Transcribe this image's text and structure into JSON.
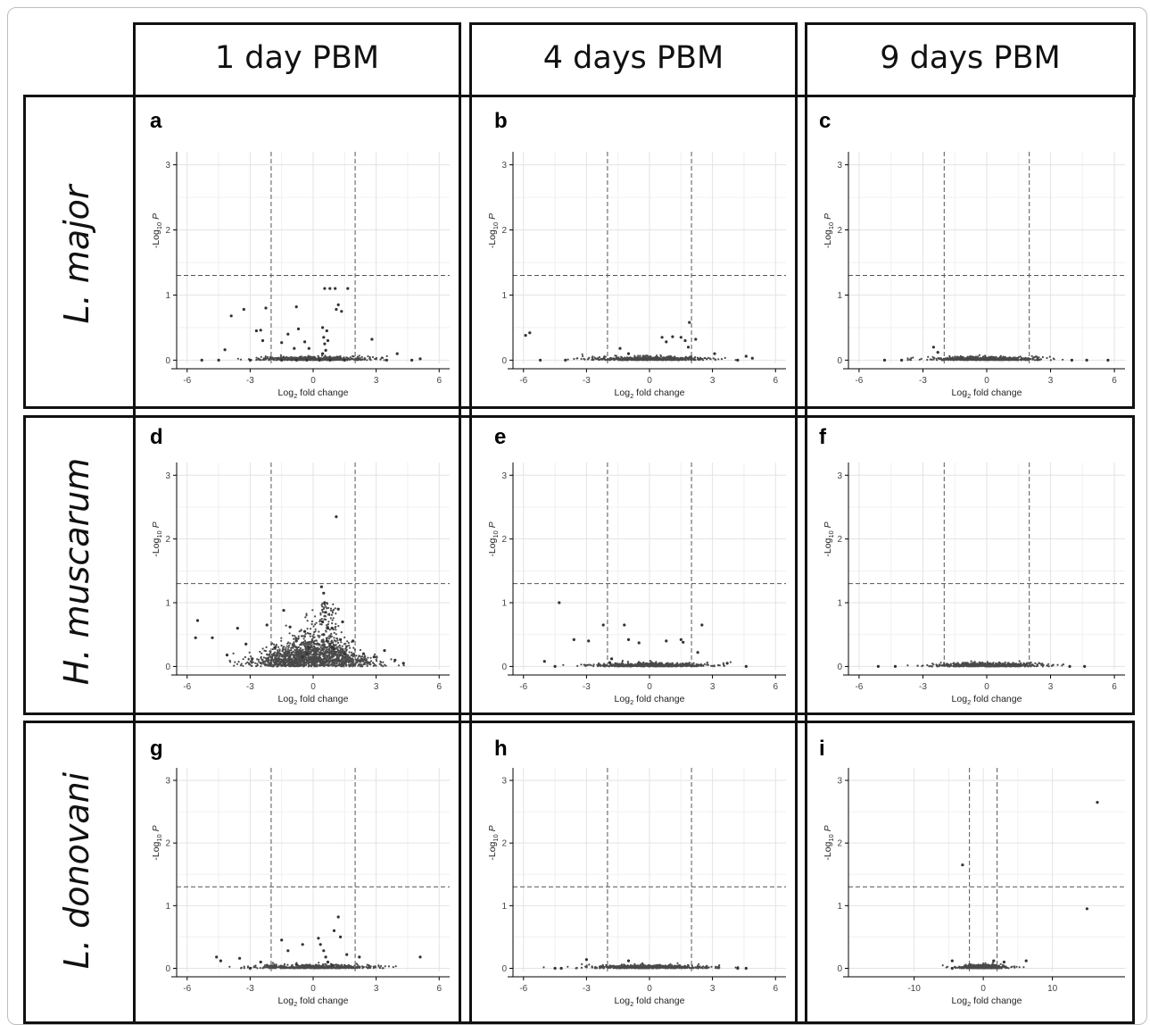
{
  "column_headers": [
    "1 day PBM",
    "4 days PBM",
    "9 days PBM"
  ],
  "row_labels": [
    "L. major",
    "H. muscarum",
    "L. donovani"
  ],
  "chart_data": [
    {
      "type": "scatter",
      "panel": "a",
      "xlabel": "Log2 fold change",
      "ylabel": "-Log10 P",
      "xlim": [
        -6.5,
        6.5
      ],
      "ylim": [
        -0.05,
        3.2
      ],
      "xticks": [
        -6,
        -3,
        0,
        3,
        6
      ],
      "yticks": [
        0,
        1,
        2,
        3
      ],
      "grid": true,
      "vlines": [
        -2,
        2
      ],
      "hline": 1.3,
      "points": [
        [
          -5.3,
          0
        ],
        [
          -4.5,
          0
        ],
        [
          -3,
          0
        ],
        [
          -1.5,
          0
        ],
        [
          -0.8,
          0
        ],
        [
          -0.3,
          0
        ],
        [
          0.3,
          0
        ],
        [
          0.8,
          0
        ],
        [
          1.5,
          0
        ],
        [
          3.5,
          0
        ],
        [
          4.7,
          0
        ],
        [
          -4.2,
          0.16
        ],
        [
          -3.9,
          0.68
        ],
        [
          -3.3,
          0.78
        ],
        [
          -2.7,
          0.45
        ],
        [
          -2.4,
          0.3
        ],
        [
          -2.5,
          0.46
        ],
        [
          -2.25,
          0.8
        ],
        [
          -1.5,
          0.27
        ],
        [
          -1.2,
          0.4
        ],
        [
          -0.9,
          0.18
        ],
        [
          -0.7,
          0.48
        ],
        [
          -0.4,
          0.28
        ],
        [
          -0.2,
          0.18
        ],
        [
          0.45,
          0.5
        ],
        [
          0.5,
          0.35
        ],
        [
          0.55,
          0.25
        ],
        [
          0.6,
          0.15
        ],
        [
          0.45,
          0.1
        ],
        [
          0.65,
          0.45
        ],
        [
          0.7,
          0.3
        ],
        [
          0.55,
          1.1
        ],
        [
          0.8,
          1.1
        ],
        [
          1.05,
          1.1
        ],
        [
          1.2,
          0.85
        ],
        [
          1.1,
          0.78
        ],
        [
          1.35,
          0.75
        ],
        [
          1.65,
          1.1
        ],
        [
          -0.8,
          0.82
        ],
        [
          2.8,
          0.32
        ],
        [
          4.0,
          0.1
        ],
        [
          5.1,
          0.02
        ]
      ]
    },
    {
      "type": "scatter",
      "panel": "b",
      "xlabel": "Log2 fold change",
      "ylabel": "-Log10 P",
      "xlim": [
        -6.5,
        6.5
      ],
      "ylim": [
        -0.05,
        3.2
      ],
      "xticks": [
        -6,
        -3,
        0,
        3,
        6
      ],
      "yticks": [
        0,
        1,
        2,
        3
      ],
      "grid": true,
      "vlines": [
        -2,
        2
      ],
      "hline": 1.3,
      "points": [
        [
          -5.9,
          0.38
        ],
        [
          -5.7,
          0.42
        ],
        [
          -1.4,
          0.18
        ],
        [
          -1.0,
          0.1
        ],
        [
          0.6,
          0.35
        ],
        [
          0.8,
          0.28
        ],
        [
          1.1,
          0.36
        ],
        [
          1.5,
          0.35
        ],
        [
          1.9,
          0.58
        ],
        [
          1.7,
          0.3
        ],
        [
          1.85,
          0.2
        ],
        [
          2.2,
          0.32
        ],
        [
          3.1,
          0.1
        ],
        [
          4.6,
          0.06
        ],
        [
          4.9,
          0.03
        ],
        [
          -5.2,
          0
        ],
        [
          -4,
          0
        ],
        [
          4.2,
          0
        ]
      ]
    },
    {
      "type": "scatter",
      "panel": "c",
      "xlabel": "Log2 fold change",
      "ylabel": "-Log10 P",
      "xlim": [
        -6.5,
        6.5
      ],
      "ylim": [
        -0.05,
        3.2
      ],
      "xticks": [
        -6,
        -3,
        0,
        3,
        6
      ],
      "yticks": [
        0,
        1,
        2,
        3
      ],
      "grid": true,
      "vlines": [
        -2,
        2
      ],
      "hline": 1.3,
      "points": [
        [
          -2.5,
          0.2
        ],
        [
          -2.3,
          0.12
        ],
        [
          -4.8,
          0
        ],
        [
          -4.0,
          0
        ],
        [
          4.0,
          0
        ],
        [
          4.7,
          0
        ],
        [
          5.7,
          0
        ]
      ]
    },
    {
      "type": "scatter",
      "panel": "d",
      "xlabel": "Log2 fold change",
      "ylabel": "-Log10 P",
      "xlim": [
        -6.5,
        6.5
      ],
      "ylim": [
        -0.05,
        3.2
      ],
      "xticks": [
        -6,
        -3,
        0,
        3,
        6
      ],
      "yticks": [
        0,
        1,
        2,
        3
      ],
      "grid": true,
      "vlines": [
        -2,
        2
      ],
      "hline": 1.3,
      "points": [
        [
          1.1,
          2.35
        ],
        [
          -5.5,
          0.72
        ],
        [
          -5.6,
          0.45
        ],
        [
          -4.8,
          0.45
        ],
        [
          -3.6,
          0.6
        ],
        [
          -3.2,
          0.35
        ],
        [
          -2.2,
          0.65
        ],
        [
          -1.4,
          0.88
        ],
        [
          -1.1,
          0.62
        ],
        [
          -0.4,
          0.55
        ],
        [
          -0.8,
          0.4
        ],
        [
          -1.8,
          0.3
        ],
        [
          -2.9,
          0.12
        ],
        [
          -4.1,
          0.18
        ],
        [
          0.4,
          1.25
        ],
        [
          0.5,
          1.15
        ],
        [
          0.55,
          1.0
        ],
        [
          0.6,
          0.85
        ],
        [
          0.45,
          0.7
        ],
        [
          0.7,
          0.6
        ],
        [
          0.5,
          0.5
        ],
        [
          0.65,
          0.4
        ],
        [
          0.8,
          0.35
        ],
        [
          0.9,
          0.3
        ],
        [
          1.0,
          0.28
        ],
        [
          1.3,
          0.42
        ],
        [
          1.5,
          0.2
        ],
        [
          1.9,
          0.4
        ],
        [
          2.4,
          0.2
        ],
        [
          2.9,
          0.15
        ],
        [
          3.4,
          0.25
        ],
        [
          3.9,
          0.1
        ],
        [
          4.3,
          0.05
        ],
        [
          1.2,
          0.9
        ],
        [
          1.4,
          0.7
        ],
        [
          0.9,
          0.6
        ],
        [
          -0.2,
          0.3
        ],
        [
          -0.3,
          0.2
        ],
        [
          -0.5,
          0.15
        ]
      ]
    },
    {
      "type": "scatter",
      "panel": "e",
      "xlabel": "Log2 fold change",
      "ylabel": "-Log10 P",
      "xlim": [
        -6.5,
        6.5
      ],
      "ylim": [
        -0.05,
        3.2
      ],
      "xticks": [
        -6,
        -3,
        0,
        3,
        6
      ],
      "yticks": [
        0,
        1,
        2,
        3
      ],
      "grid": true,
      "vlines": [
        -2,
        2
      ],
      "hline": 1.3,
      "points": [
        [
          -4.3,
          1.0
        ],
        [
          -5.0,
          0.08
        ],
        [
          -3.6,
          0.42
        ],
        [
          -2.9,
          0.4
        ],
        [
          -2.2,
          0.65
        ],
        [
          -1.2,
          0.65
        ],
        [
          -1.0,
          0.42
        ],
        [
          -0.5,
          0.37
        ],
        [
          0.8,
          0.4
        ],
        [
          1.5,
          0.42
        ],
        [
          1.6,
          0.38
        ],
        [
          2.5,
          0.65
        ],
        [
          2.3,
          0.22
        ],
        [
          3.7,
          0.05
        ],
        [
          -1.8,
          0.12
        ],
        [
          -1.9,
          0.06
        ],
        [
          -4.5,
          0
        ],
        [
          4.6,
          0
        ]
      ]
    },
    {
      "type": "scatter",
      "panel": "f",
      "xlabel": "Log2 fold change",
      "ylabel": "-Log10 P",
      "xlim": [
        -6.5,
        6.5
      ],
      "ylim": [
        -0.05,
        3.2
      ],
      "xticks": [
        -6,
        -3,
        0,
        3,
        6
      ],
      "yticks": [
        0,
        1,
        2,
        3
      ],
      "grid": true,
      "vlines": [
        -2,
        2
      ],
      "hline": 1.3,
      "points": [
        [
          -5.1,
          0
        ],
        [
          -4.3,
          0
        ],
        [
          4.6,
          0
        ],
        [
          3.9,
          0
        ]
      ]
    },
    {
      "type": "scatter",
      "panel": "g",
      "xlabel": "Log2 fold change",
      "ylabel": "-Log10 P",
      "xlim": [
        -6.5,
        6.5
      ],
      "ylim": [
        -0.05,
        3.2
      ],
      "xticks": [
        -6,
        -3,
        0,
        3,
        6
      ],
      "yticks": [
        0,
        1,
        2,
        3
      ],
      "grid": true,
      "vlines": [
        -2,
        2
      ],
      "hline": 1.3,
      "points": [
        [
          -4.6,
          0.18
        ],
        [
          -4.4,
          0.12
        ],
        [
          -3.5,
          0.16
        ],
        [
          -2.5,
          0.1
        ],
        [
          -1.5,
          0.45
        ],
        [
          -1.2,
          0.28
        ],
        [
          -0.5,
          0.38
        ],
        [
          0.25,
          0.48
        ],
        [
          0.35,
          0.38
        ],
        [
          0.5,
          0.28
        ],
        [
          0.6,
          0.18
        ],
        [
          0.7,
          0.1
        ],
        [
          1.0,
          0.6
        ],
        [
          1.2,
          0.82
        ],
        [
          1.3,
          0.5
        ],
        [
          1.6,
          0.22
        ],
        [
          2.2,
          0.18
        ],
        [
          5.1,
          0.18
        ],
        [
          0.9,
          0.05
        ],
        [
          -0.8,
          0.06
        ],
        [
          -3.0,
          0
        ]
      ]
    },
    {
      "type": "scatter",
      "panel": "h",
      "xlabel": "Log2 fold change",
      "ylabel": "-Log10 P",
      "xlim": [
        -6.5,
        6.5
      ],
      "ylim": [
        -0.05,
        3.2
      ],
      "xticks": [
        -6,
        -3,
        0,
        3,
        6
      ],
      "yticks": [
        0,
        1,
        2,
        3
      ],
      "grid": true,
      "vlines": [
        -2,
        2
      ],
      "hline": 1.3,
      "points": [
        [
          -3.0,
          0.14
        ],
        [
          -1.0,
          0.12
        ],
        [
          -4.2,
          0
        ],
        [
          -4.5,
          0
        ],
        [
          4.6,
          0
        ],
        [
          4.2,
          0
        ]
      ]
    },
    {
      "type": "scatter",
      "panel": "i",
      "xlabel": "Log2 fold change",
      "ylabel": "-Log10 P",
      "xlim": [
        -19.5,
        20.5
      ],
      "ylim": [
        -0.05,
        3.2
      ],
      "xticks": [
        -10,
        0,
        10
      ],
      "yticks": [
        0,
        1,
        2,
        3
      ],
      "grid": true,
      "vlines": [
        -2,
        2
      ],
      "hline": 1.3,
      "points": [
        [
          16.5,
          2.65
        ],
        [
          -3,
          1.65
        ],
        [
          15,
          0.95
        ],
        [
          -4.5,
          0.12
        ],
        [
          1.5,
          0.12
        ],
        [
          3.0,
          0.1
        ],
        [
          6.2,
          0.12
        ],
        [
          -4.5,
          0
        ]
      ]
    }
  ]
}
